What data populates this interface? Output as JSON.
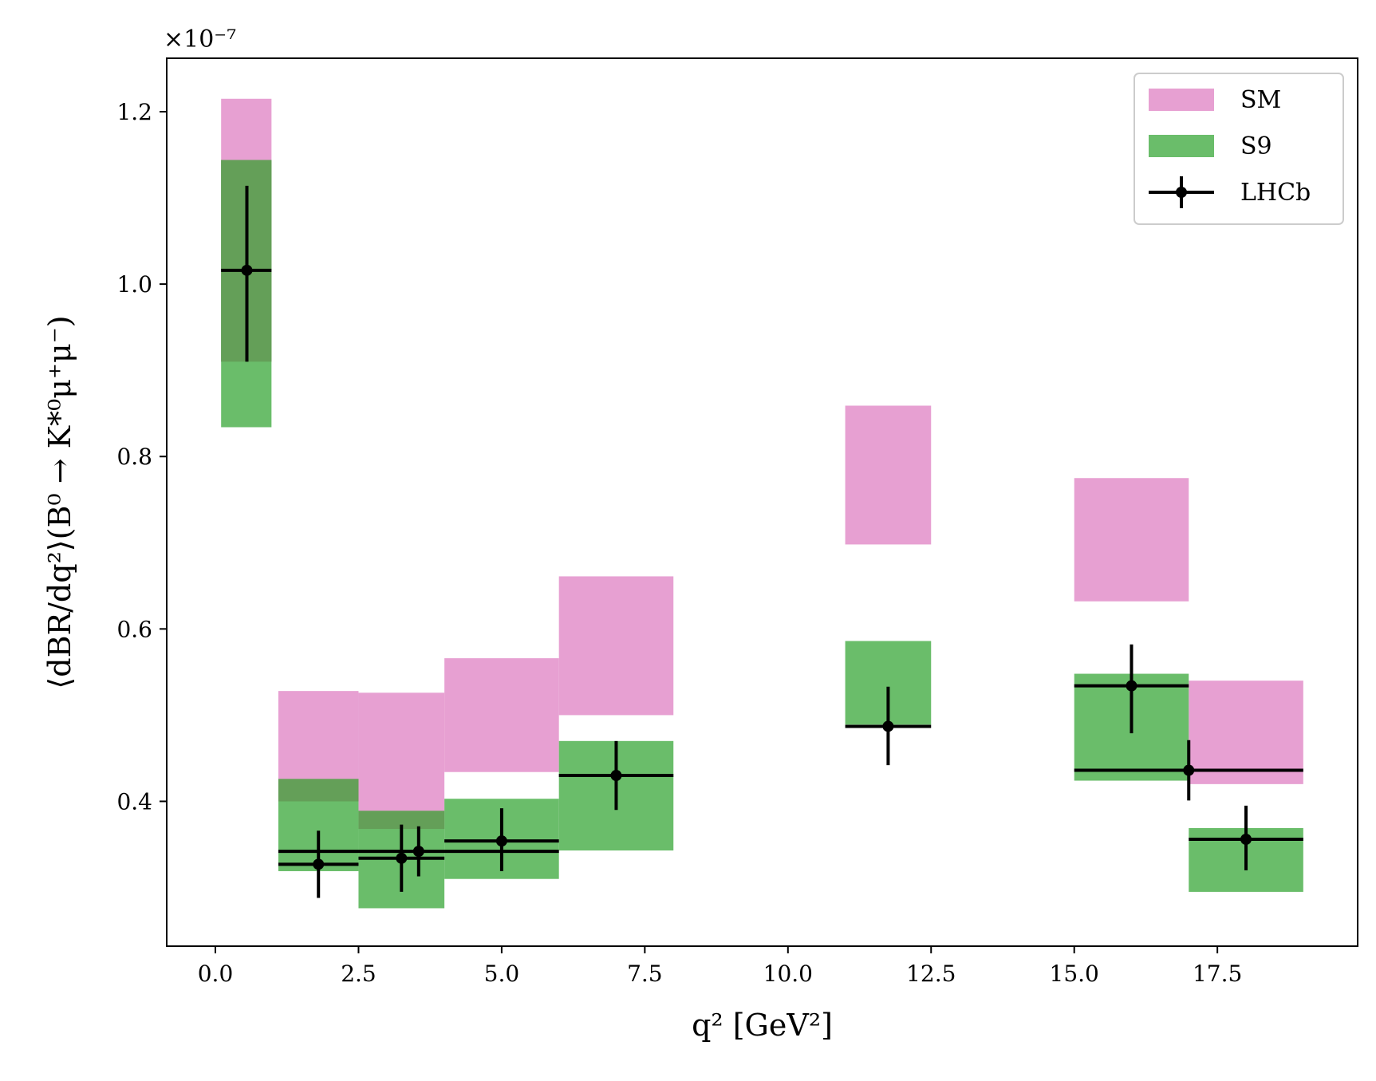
{
  "chart_data": {
    "type": "bar",
    "xlabel": "q² [GeV²]",
    "ylabel": "⟨dBR/dq²⟩(B⁰ → K*⁰μ⁺μ⁻)",
    "offset_text": "×10⁻⁷",
    "xlim": [
      -0.85,
      19.95
    ],
    "ylim": [
      0.232,
      1.262
    ],
    "xticks": [
      0.0,
      2.5,
      5.0,
      7.5,
      10.0,
      12.5,
      15.0,
      17.5
    ],
    "xtick_labels": [
      "0.0",
      "2.5",
      "5.0",
      "7.5",
      "10.0",
      "12.5",
      "15.0",
      "17.5"
    ],
    "yticks": [
      0.4,
      0.6,
      0.8,
      1.0,
      1.2
    ],
    "ytick_labels": [
      "0.4",
      "0.6",
      "0.8",
      "1.0",
      "1.2"
    ],
    "legend": {
      "placement": "top-right",
      "entries": [
        {
          "label": "SM",
          "color": "#e7a0d2"
        },
        {
          "label": "S9",
          "color": "#6abd6a"
        },
        {
          "label": "LHCb",
          "color": "#000000"
        }
      ]
    },
    "series": [
      {
        "name": "SM",
        "kind": "band",
        "color": "#e7a0d2",
        "bins": [
          {
            "x0": 0.1,
            "x1": 0.98,
            "lo": 0.91,
            "hi": 1.215
          },
          {
            "x0": 1.1,
            "x1": 2.5,
            "lo": 0.4,
            "hi": 0.528
          },
          {
            "x0": 2.5,
            "x1": 4.0,
            "lo": 0.368,
            "hi": 0.526
          },
          {
            "x0": 4.0,
            "x1": 6.0,
            "lo": 0.434,
            "hi": 0.566
          },
          {
            "x0": 6.0,
            "x1": 8.0,
            "lo": 0.5,
            "hi": 0.661
          },
          {
            "x0": 11.0,
            "x1": 12.5,
            "lo": 0.698,
            "hi": 0.859
          },
          {
            "x0": 15.0,
            "x1": 17.0,
            "lo": 0.632,
            "hi": 0.775
          },
          {
            "x0": 17.0,
            "x1": 19.0,
            "lo": 0.42,
            "hi": 0.54
          }
        ]
      },
      {
        "name": "S9",
        "kind": "band",
        "color": "#6abd6a",
        "bins": [
          {
            "x0": 0.1,
            "x1": 0.98,
            "lo": 0.834,
            "hi": 1.144
          },
          {
            "x0": 1.1,
            "x1": 2.5,
            "lo": 0.319,
            "hi": 0.426
          },
          {
            "x0": 2.5,
            "x1": 4.0,
            "lo": 0.276,
            "hi": 0.389
          },
          {
            "x0": 4.0,
            "x1": 6.0,
            "lo": 0.31,
            "hi": 0.403
          },
          {
            "x0": 6.0,
            "x1": 8.0,
            "lo": 0.343,
            "hi": 0.47
          },
          {
            "x0": 11.0,
            "x1": 12.5,
            "lo": 0.489,
            "hi": 0.586
          },
          {
            "x0": 15.0,
            "x1": 17.0,
            "lo": 0.424,
            "hi": 0.548
          },
          {
            "x0": 17.0,
            "x1": 19.0,
            "lo": 0.295,
            "hi": 0.369
          }
        ]
      },
      {
        "name": "LHCb",
        "kind": "errorbar",
        "color": "#000000",
        "points": [
          {
            "x": 0.55,
            "y": 1.016,
            "xerr": [
              0.45,
              0.43
            ],
            "yerr": [
              0.106,
              0.098
            ]
          },
          {
            "x": 1.8,
            "y": 0.327,
            "xerr": [
              0.7,
              0.7
            ],
            "yerr": [
              0.039,
              0.039
            ]
          },
          {
            "x": 3.25,
            "y": 0.334,
            "xerr": [
              0.75,
              0.75
            ],
            "yerr": [
              0.039,
              0.039
            ]
          },
          {
            "x": 3.55,
            "y": 0.342,
            "xerr": [
              2.45,
              2.45
            ],
            "yerr": [
              0.029,
              0.029
            ]
          },
          {
            "x": 5.0,
            "y": 0.354,
            "xerr": [
              1.0,
              1.0
            ],
            "yerr": [
              0.035,
              0.038
            ]
          },
          {
            "x": 7.0,
            "y": 0.43,
            "xerr": [
              1.0,
              1.0
            ],
            "yerr": [
              0.04,
              0.04
            ]
          },
          {
            "x": 11.75,
            "y": 0.487,
            "xerr": [
              0.75,
              0.75
            ],
            "yerr": [
              0.045,
              0.046
            ]
          },
          {
            "x": 16.0,
            "y": 0.534,
            "xerr": [
              1.0,
              1.0
            ],
            "yerr": [
              0.055,
              0.048
            ]
          },
          {
            "x": 17.0,
            "y": 0.436,
            "xerr": [
              2.0,
              2.0
            ],
            "yerr": [
              0.035,
              0.035
            ]
          },
          {
            "x": 18.0,
            "y": 0.356,
            "xerr": [
              1.0,
              1.0
            ],
            "yerr": [
              0.036,
              0.039
            ]
          }
        ]
      }
    ]
  }
}
